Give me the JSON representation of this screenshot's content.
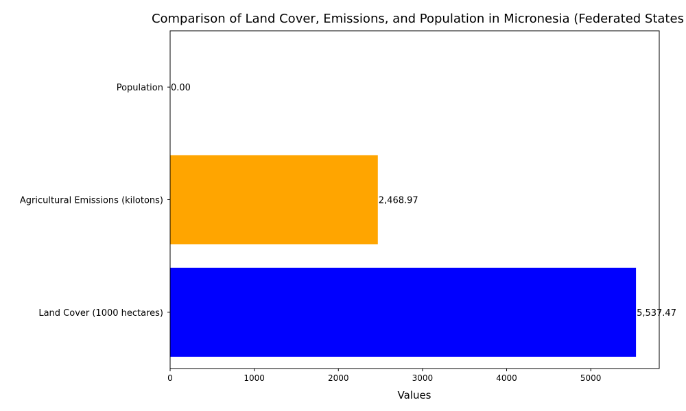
{
  "chart_data": {
    "type": "bar",
    "orientation": "horizontal",
    "title": "Comparison of Land Cover, Emissions, and Population in Micronesia (Federated States of)",
    "xlabel": "Values",
    "ylabel": "",
    "categories": [
      "Land Cover (1000 hectares)",
      "Agricultural Emissions (kilotons)",
      "Population"
    ],
    "values": [
      5537.47,
      2468.97,
      0.0
    ],
    "data_labels": [
      "5,537.47",
      "2,468.97",
      "0.00"
    ],
    "colors": [
      "#0000ff",
      "#ffa500",
      "#008000"
    ],
    "xlim": [
      0,
      5814
    ],
    "xticks": [
      0,
      1000,
      2000,
      3000,
      4000,
      5000
    ],
    "xtick_labels": [
      "0",
      "1000",
      "2000",
      "3000",
      "4000",
      "5000"
    ],
    "grid": false,
    "legend": "none"
  }
}
